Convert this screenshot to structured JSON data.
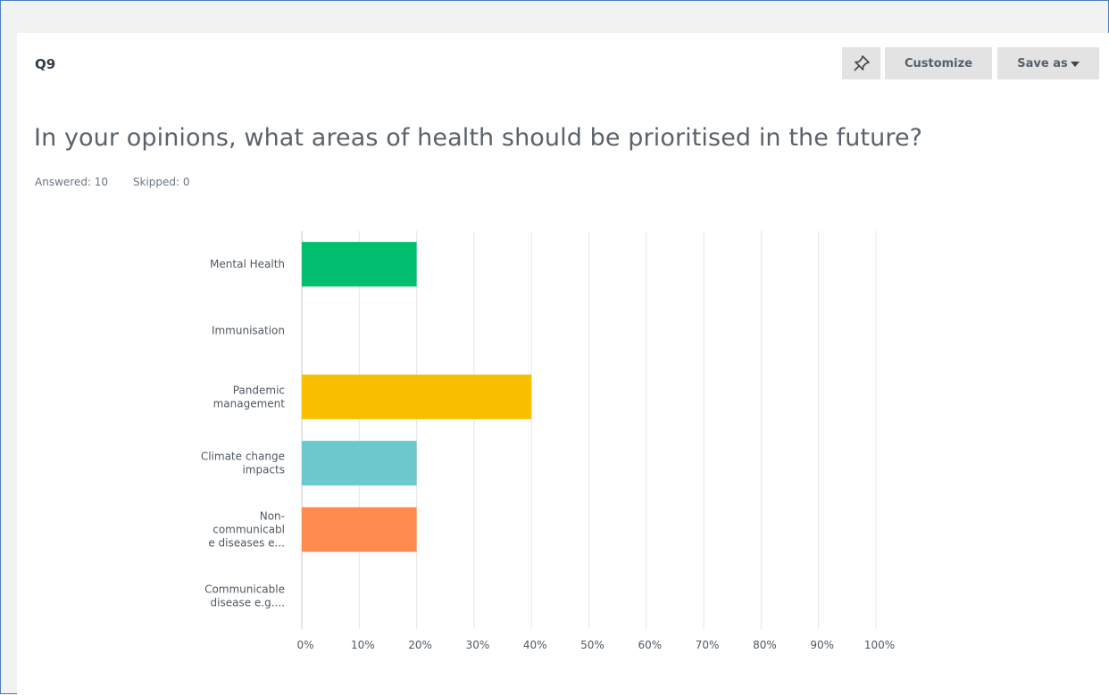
{
  "question_number": "Q9",
  "toolbar": {
    "pin_icon": "pin-icon",
    "customize_label": "Customize",
    "save_as_label": "Save as"
  },
  "question_text": "In your opinions, what areas of health should be prioritised in the future?",
  "stats": {
    "answered": "Answered: 10",
    "skipped": "Skipped: 0"
  },
  "chart_data": {
    "type": "bar",
    "orientation": "horizontal",
    "categories": [
      [
        "Mental Health"
      ],
      [
        "Immunisation"
      ],
      [
        "Pandemic",
        "management"
      ],
      [
        "Climate change",
        "impacts"
      ],
      [
        "Non-",
        "communicabl",
        "e diseases e..."
      ],
      [
        "Communicable",
        "disease e.g...."
      ]
    ],
    "values": [
      20,
      0,
      40,
      20,
      20,
      0
    ],
    "colors": [
      "#00bf6f",
      "#507cb6",
      "#f9be00",
      "#6bc8cd",
      "#ff8b4f",
      "#7d5ba6"
    ],
    "xlim": [
      0,
      100
    ],
    "ticks": [
      "0%",
      "10%",
      "20%",
      "30%",
      "40%",
      "50%",
      "60%",
      "70%",
      "80%",
      "90%",
      "100%"
    ],
    "grid": true
  }
}
